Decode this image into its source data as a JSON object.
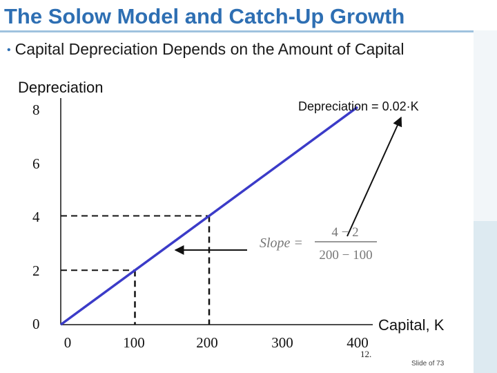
{
  "slide": {
    "title": "The Solow Model and Catch-Up Growth",
    "bullet": "Capital Depreciation Depends on the Amount of Capital",
    "slide_number_label": "12.",
    "slide_footer": "Slide of 73"
  },
  "colors": {
    "title": "#2e6fb3",
    "line": "#3b3bc8",
    "accent_rule": "#9fc2de"
  },
  "chart_data": {
    "type": "line",
    "ylabel": "Depreciation",
    "xlabel": "Capital, K",
    "x_ticks": [
      "0",
      "100",
      "200",
      "300",
      "400"
    ],
    "y_ticks": [
      "0",
      "2",
      "4",
      "6",
      "8"
    ],
    "xlim": [
      0,
      400
    ],
    "ylim": [
      0,
      8
    ],
    "series": [
      {
        "name": "Depreciation = 0.02·K",
        "x": [
          0,
          400
        ],
        "y": [
          0,
          8
        ]
      }
    ],
    "reference_points": [
      {
        "x": 100,
        "y": 2
      },
      {
        "x": 200,
        "y": 4
      }
    ],
    "annotation_equation": "Depreciation = 0.02·K",
    "slope_label": "Slope =",
    "slope_numerator": "4 − 2",
    "slope_denominator": "200 − 100"
  }
}
